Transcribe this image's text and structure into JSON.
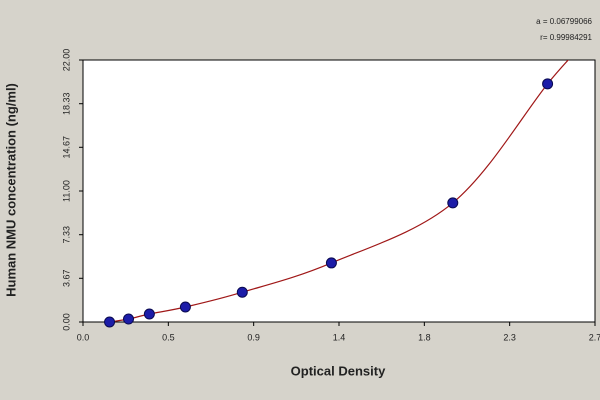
{
  "chart_data": {
    "type": "scatter",
    "x_label": "Optical Density",
    "y_label": "Human  NMU concentration (ng/ml)",
    "annotations": [
      "a = 0.06799066",
      "r= 0.99984291"
    ],
    "series": [
      {
        "color": "#1c1ca8",
        "fit_color": "#a01818",
        "x": [
          0.14,
          0.24,
          0.35,
          0.54,
          0.84,
          1.31,
          1.95,
          2.45
        ],
        "values": [
          0,
          0.25,
          0.67,
          1.26,
          2.5,
          4.96,
          10.0,
          20.0
        ]
      }
    ],
    "xlim": [
      0,
      2.7
    ],
    "xticks": [
      {
        "value": 0,
        "label": "0.0"
      },
      {
        "value": 0.45,
        "label": "0.5"
      },
      0.9,
      {
        "value": 1.35,
        "label": "1.4"
      },
      1.8,
      {
        "value": 2.25,
        "label": "2.3"
      },
      2.7
    ],
    "ylim": [
      0,
      22
    ],
    "yticks": [
      {
        "value": 0,
        "label": "0.00"
      },
      3.67,
      7.33,
      {
        "value": 11,
        "label": "11.00"
      },
      14.67,
      18.33,
      {
        "value": 22,
        "label": "22.00"
      }
    ]
  }
}
